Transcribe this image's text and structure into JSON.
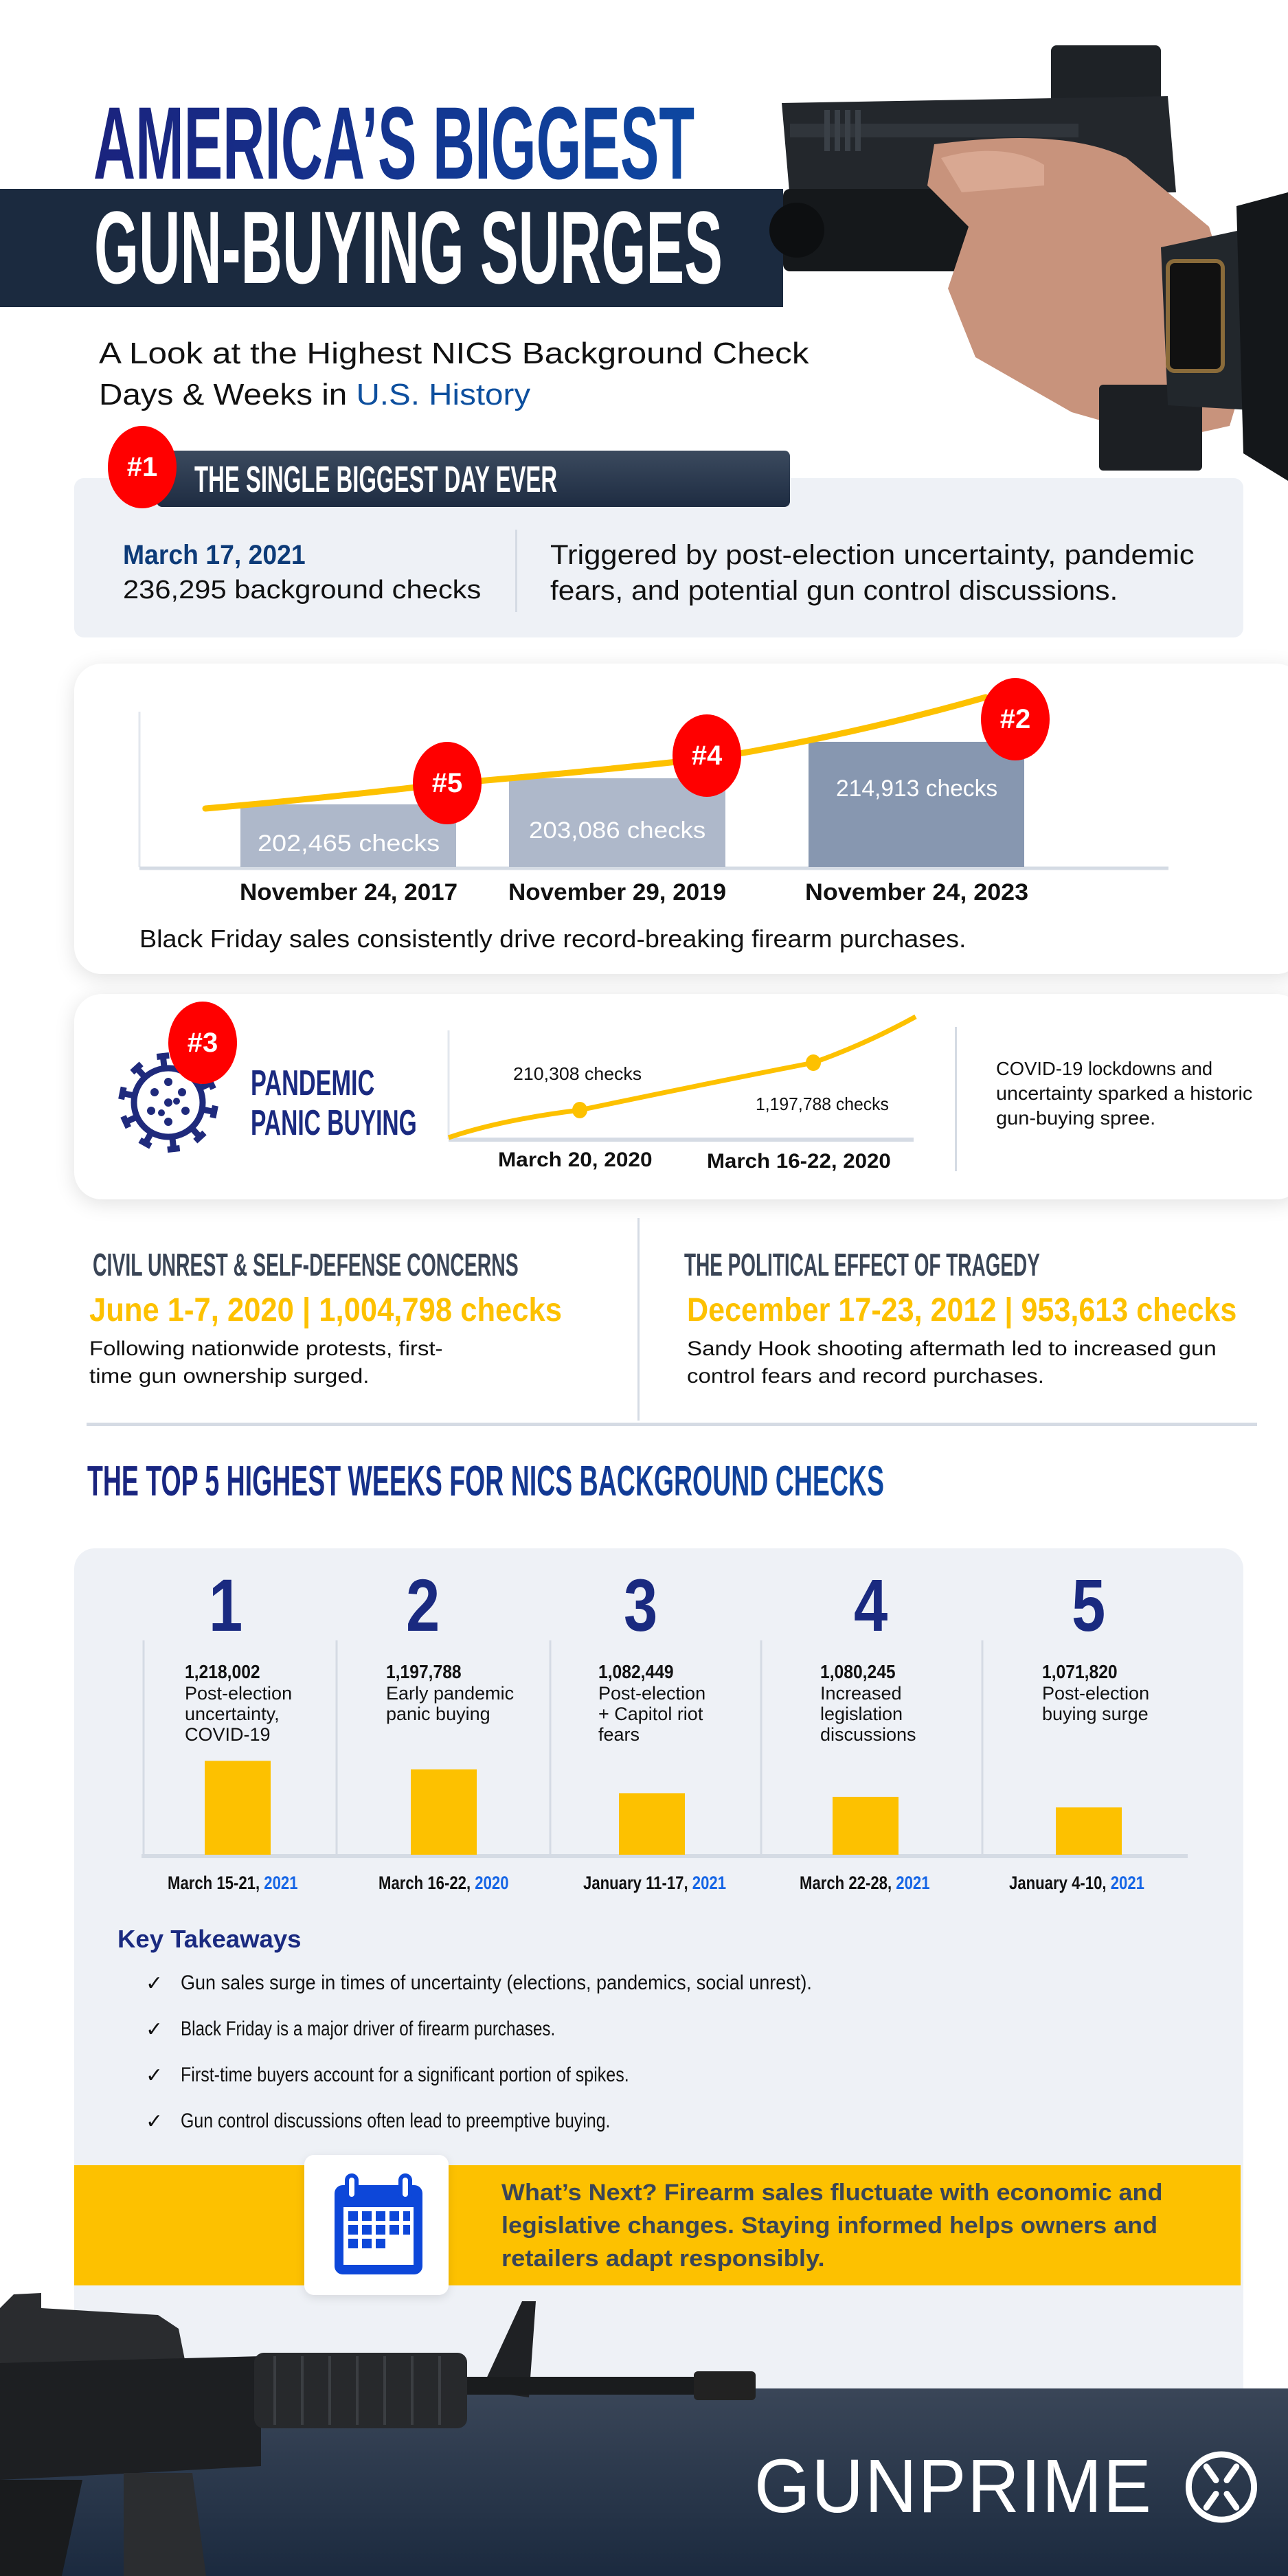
{
  "header": {
    "title_line1": "AMERICA’S BIGGEST",
    "title_line2": "GUN-BUYING SURGES",
    "subtitle_line1": "A Look at the Highest NICS Background Check",
    "subtitle_line2_prefix": "Days & Weeks in ",
    "subtitle_line2_highlight": "U.S. History"
  },
  "biggest_day": {
    "badge": "#1",
    "heading": "THE SINGLE BIGGEST DAY EVER",
    "date": "March 17, 2021",
    "checks": "236,295 background checks",
    "description_line1": "Triggered by post-election uncertainty, pandemic",
    "description_line2": "fears, and potential gun control discussions."
  },
  "black_friday": {
    "caption": "Black Friday sales consistently drive record-breaking firearm purchases."
  },
  "pandemic": {
    "badge": "#3",
    "title_line1": "PANDEMIC",
    "title_line2": "PANIC BUYING",
    "description_line1": "COVID-19 lockdowns and",
    "description_line2": "uncertainty sparked a historic",
    "description_line3": "gun-buying spree."
  },
  "civil_unrest": {
    "heading": "CIVIL UNREST & SELF-DEFENSE CONCERNS",
    "stat": "June 1-7, 2020 | 1,004,798 checks",
    "description_line1": "Following nationwide protests, first-",
    "description_line2": "time gun ownership surged."
  },
  "tragedy": {
    "heading": "THE POLITICAL EFFECT OF TRAGEDY",
    "stat": "December 17-23, 2012 | 953,613 checks",
    "description_line1": "Sandy Hook shooting aftermath led to increased gun",
    "description_line2": "control fears and record purchases."
  },
  "top5": {
    "heading": "THE TOP 5 HIGHEST WEEKS FOR NICS BACKGROUND CHECKS"
  },
  "takeaways": {
    "heading": "Key Takeaways",
    "items": [
      "Gun sales surge in times of uncertainty (elections, pandemics, social unrest).",
      "Black Friday is a major driver of firearm purchases.",
      "First-time buyers account for a significant portion of spikes.",
      "Gun control discussions often lead to preemptive buying."
    ],
    "check_icon": "checkmark-icon"
  },
  "whats_next": {
    "icon": "calendar-icon",
    "line1": "What’s Next? Firearm sales fluctuate with economic and",
    "line2": "legislative changes. Staying informed helps owners and",
    "line3": "retailers adapt responsibly."
  },
  "footer": {
    "logo_text": "GUNPRIME"
  },
  "colors": {
    "navy": "#1a2a80",
    "dark_band": "#1b2a3f",
    "accent_yellow": "#fdc100",
    "badge_red": "#ff0000",
    "link_blue": "#0d4f9e",
    "card_bg": "#eef1f6"
  },
  "chart_data": [
    {
      "type": "bar",
      "categories": [
        "November 24, 2017",
        "November 29, 2019",
        "November 24, 2023"
      ],
      "values": [
        202465,
        203086,
        214913
      ],
      "labels": [
        "202,465  checks",
        "203,086 checks",
        "214,913 checks"
      ],
      "badges": [
        "#5",
        "#4",
        "#2"
      ],
      "trend_line": true,
      "ylim": [
        190000,
        216000
      ]
    },
    {
      "type": "line",
      "categories": [
        "March 20, 2020",
        "March 16-22, 2020"
      ],
      "values": [
        210308,
        1197788
      ],
      "labels": [
        "210,308 checks",
        "1,197,788 checks"
      ]
    },
    {
      "type": "bar",
      "ranks": [
        "1",
        "2",
        "3",
        "4",
        "5"
      ],
      "values": [
        1218002,
        1197788,
        1082449,
        1080245,
        1071820
      ],
      "value_labels": [
        "1,218,002",
        "1,197,788",
        "1,082,449",
        "1,080,245",
        "1,071,820"
      ],
      "descriptions": [
        [
          "Post-election",
          "uncertainty,",
          "COVID-19"
        ],
        [
          "Early pandemic",
          "panic buying"
        ],
        [
          "Post-election",
          "+ Capitol riot",
          "fears"
        ],
        [
          "Increased",
          "legislation",
          "discussions"
        ],
        [
          "Post-election",
          "buying surge"
        ]
      ],
      "date_prefixes": [
        "March 15-21, ",
        "March 16-22, ",
        "January 11-17, ",
        "March 22-28, ",
        "January 4-10, "
      ],
      "years": [
        "2021",
        "2020",
        "2021",
        "2021",
        "2021"
      ],
      "ylim": [
        900000,
        1250000
      ]
    }
  ]
}
